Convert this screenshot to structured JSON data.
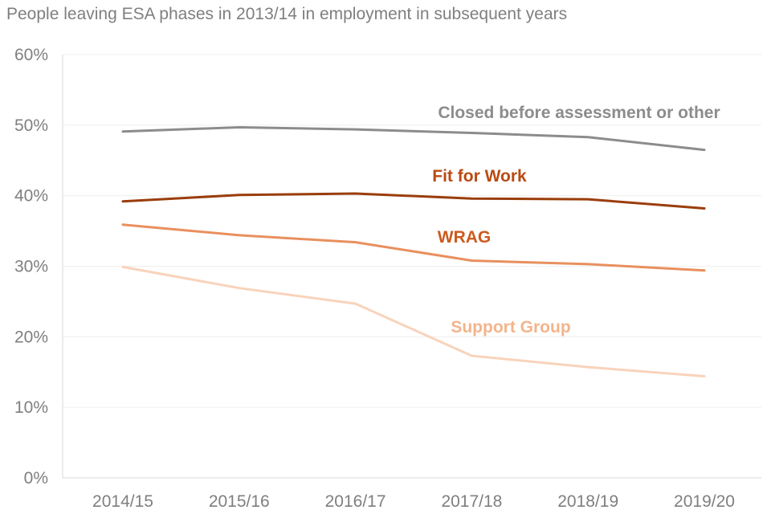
{
  "chart_data": {
    "type": "line",
    "title": "People leaving ESA phases in 2013/14 in employment in subsequent years",
    "categories": [
      "2014/15",
      "2015/16",
      "2016/17",
      "2017/18",
      "2018/19",
      "2019/20"
    ],
    "y_ticks": [
      "0%",
      "10%",
      "20%",
      "30%",
      "40%",
      "50%",
      "60%"
    ],
    "ylim": [
      0,
      60
    ],
    "grid": true,
    "series": [
      {
        "name": "Closed before assessment or other",
        "values": [
          49.1,
          49.7,
          49.4,
          48.9,
          48.3,
          46.5
        ],
        "color": "#8c8c8c"
      },
      {
        "name": "Fit for Work",
        "values": [
          39.2,
          40.1,
          40.3,
          39.6,
          39.5,
          38.2
        ],
        "color": "#9a3d0a"
      },
      {
        "name": "WRAG",
        "values": [
          35.9,
          34.4,
          33.4,
          30.8,
          30.3,
          29.4
        ],
        "color": "#e8905e"
      },
      {
        "name": "Support Group",
        "values": [
          29.9,
          26.9,
          24.7,
          17.3,
          15.7,
          14.4
        ],
        "color": "#f8d3bb"
      }
    ],
    "series_label_colors": [
      "#8c8c8c",
      "#b84a12",
      "#cc5a1c",
      "#f2b48c"
    ]
  }
}
